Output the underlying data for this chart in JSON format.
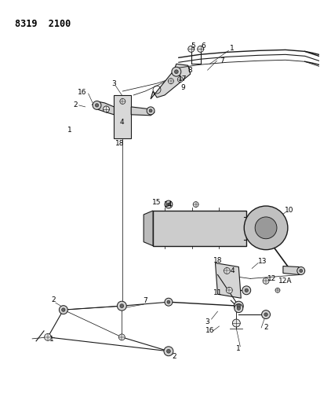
{
  "title": "8319  2100",
  "bg_color": "#ffffff",
  "line_color": "#1a1a1a",
  "text_color": "#000000",
  "title_fontsize": 8.5,
  "label_fontsize": 6.5,
  "figsize": [
    4.08,
    5.33
  ],
  "dpi": 100
}
